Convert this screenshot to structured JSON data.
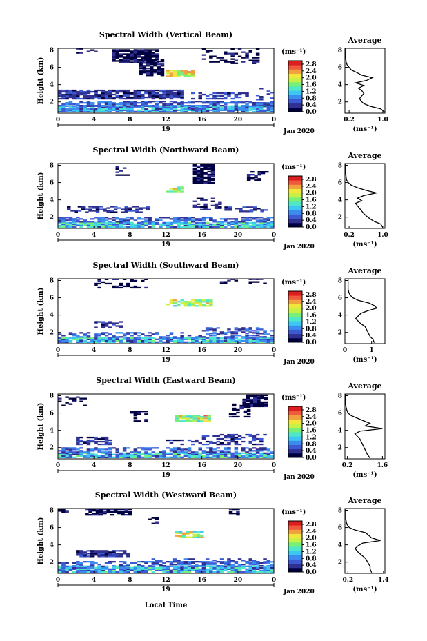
{
  "figure": {
    "xlabel": "Local Time",
    "date_label": "Jan 2020",
    "day_label": "19",
    "ylabel": "Height (km)",
    "avg_title": "Average",
    "avg_xlabel": "(ms⁻¹)",
    "colorbar_unit": "(ms⁻¹)",
    "colorbar_ticks": [
      "0.0",
      "0.4",
      "0.8",
      "1.2",
      "1.6",
      "2.0",
      "2.4",
      "2.8"
    ],
    "colormap": [
      "#000040",
      "#303090",
      "#3c5ad2",
      "#3c8cf0",
      "#3cc8f0",
      "#50e6c8",
      "#78f078",
      "#c8f046",
      "#f0e63c",
      "#f0a03c",
      "#f05a3c",
      "#dc1e1e"
    ]
  },
  "chart_data": [
    {
      "type": "heatmap",
      "title": "Spectral Width (Vertical Beam)",
      "x_ticks": [
        "0",
        "4",
        "8",
        "12",
        "16",
        "20",
        "0"
      ],
      "y_ticks": [
        "2",
        "4",
        "6",
        "8"
      ],
      "xlim": [
        0,
        24
      ],
      "ylim": [
        0.7,
        8.2
      ],
      "avg": {
        "xlim": [
          0.1,
          1.05
        ],
        "x_ticks": [
          "0.2",
          "1.0"
        ],
        "x_tick_values": [
          0.2,
          1.0
        ],
        "y_ticks": [
          "2",
          "4",
          "6",
          "8"
        ],
        "profile": [
          [
            0.8,
            1.05
          ],
          [
            1.2,
            0.95
          ],
          [
            1.5,
            0.7
          ],
          [
            1.8,
            0.55
          ],
          [
            2.1,
            0.48
          ],
          [
            2.4,
            0.45
          ],
          [
            2.7,
            0.5
          ],
          [
            3.0,
            0.55
          ],
          [
            3.3,
            0.5
          ],
          [
            3.6,
            0.42
          ],
          [
            3.9,
            0.55
          ],
          [
            4.2,
            0.35
          ],
          [
            4.5,
            0.62
          ],
          [
            4.8,
            0.75
          ],
          [
            5.1,
            0.5
          ],
          [
            5.4,
            0.38
          ],
          [
            5.7,
            0.25
          ],
          [
            6.0,
            0.2
          ],
          [
            6.3,
            0.15
          ],
          [
            6.6,
            0.13
          ],
          [
            7.0,
            0.12
          ],
          [
            7.5,
            0.12
          ],
          [
            8.2,
            0.12
          ]
        ]
      }
    },
    {
      "type": "heatmap",
      "title": "Spectral Width (Northward Beam)",
      "x_ticks": [
        "0",
        "4",
        "8",
        "12",
        "16",
        "20",
        "0"
      ],
      "y_ticks": [
        "2",
        "4",
        "6",
        "8"
      ],
      "xlim": [
        0,
        24
      ],
      "ylim": [
        0.7,
        8.2
      ],
      "avg": {
        "xlim": [
          0.1,
          1.05
        ],
        "x_ticks": [
          "0.2",
          "1.0"
        ],
        "x_tick_values": [
          0.2,
          1.0
        ],
        "y_ticks": [
          "2",
          "4",
          "6",
          "8"
        ],
        "profile": [
          [
            0.8,
            1.0
          ],
          [
            1.2,
            0.95
          ],
          [
            1.5,
            0.8
          ],
          [
            1.8,
            0.7
          ],
          [
            2.1,
            0.62
          ],
          [
            2.4,
            0.55
          ],
          [
            2.7,
            0.5
          ],
          [
            3.0,
            0.45
          ],
          [
            3.3,
            0.4
          ],
          [
            3.6,
            0.35
          ],
          [
            3.9,
            0.5
          ],
          [
            4.2,
            0.4
          ],
          [
            4.5,
            0.55
          ],
          [
            4.8,
            0.85
          ],
          [
            5.1,
            0.6
          ],
          [
            5.4,
            0.4
          ],
          [
            5.7,
            0.25
          ],
          [
            6.0,
            0.18
          ],
          [
            6.3,
            0.14
          ],
          [
            6.6,
            0.13
          ],
          [
            7.0,
            0.12
          ],
          [
            8.2,
            0.12
          ]
        ]
      }
    },
    {
      "type": "heatmap",
      "title": "Spectral Width (Southward Beam)",
      "x_ticks": [
        "0",
        "4",
        "8",
        "12",
        "16",
        "20",
        "0"
      ],
      "y_ticks": [
        "2",
        "4",
        "6",
        "8"
      ],
      "xlim": [
        0,
        24
      ],
      "ylim": [
        0.7,
        8.2
      ],
      "avg": {
        "xlim": [
          0,
          1.5
        ],
        "x_ticks": [
          "0",
          "1"
        ],
        "x_tick_values": [
          0,
          1
        ],
        "y_ticks": [
          "2",
          "4",
          "6",
          "8"
        ],
        "profile": [
          [
            0.8,
            1.1
          ],
          [
            1.2,
            1.05
          ],
          [
            1.5,
            0.95
          ],
          [
            1.8,
            0.9
          ],
          [
            2.1,
            0.85
          ],
          [
            2.4,
            0.8
          ],
          [
            2.7,
            0.75
          ],
          [
            3.0,
            0.6
          ],
          [
            3.3,
            0.5
          ],
          [
            3.6,
            0.4
          ],
          [
            3.9,
            0.5
          ],
          [
            4.2,
            0.6
          ],
          [
            4.5,
            0.85
          ],
          [
            4.8,
            1.2
          ],
          [
            5.1,
            1.1
          ],
          [
            5.4,
            0.9
          ],
          [
            5.7,
            0.5
          ],
          [
            6.0,
            0.3
          ],
          [
            6.3,
            0.2
          ],
          [
            6.6,
            0.15
          ],
          [
            7.0,
            0.12
          ],
          [
            8.2,
            0.12
          ]
        ]
      }
    },
    {
      "type": "heatmap",
      "title": "Spectral Width (Eastward Beam)",
      "x_ticks": [
        "0",
        "4",
        "8",
        "12",
        "16",
        "20",
        "0"
      ],
      "y_ticks": [
        "2",
        "4",
        "6",
        "8"
      ],
      "xlim": [
        0,
        24
      ],
      "ylim": [
        0.7,
        8.2
      ],
      "avg": {
        "xlim": [
          0.1,
          1.7
        ],
        "x_ticks": [
          "0.2",
          "1.6"
        ],
        "x_tick_values": [
          0.2,
          1.6
        ],
        "y_ticks": [
          "2",
          "4",
          "6",
          "8"
        ],
        "profile": [
          [
            0.8,
            1.1
          ],
          [
            1.2,
            1.0
          ],
          [
            1.5,
            0.95
          ],
          [
            1.8,
            0.9
          ],
          [
            2.1,
            0.85
          ],
          [
            2.4,
            0.8
          ],
          [
            2.7,
            0.75
          ],
          [
            3.0,
            0.7
          ],
          [
            3.3,
            0.6
          ],
          [
            3.6,
            0.5
          ],
          [
            3.9,
            0.7
          ],
          [
            4.2,
            1.6
          ],
          [
            4.5,
            0.9
          ],
          [
            4.8,
            1.1
          ],
          [
            5.1,
            0.85
          ],
          [
            5.4,
            0.6
          ],
          [
            5.7,
            0.35
          ],
          [
            6.0,
            0.22
          ],
          [
            6.3,
            0.18
          ],
          [
            6.6,
            0.15
          ],
          [
            7.0,
            0.13
          ],
          [
            8.2,
            0.13
          ]
        ]
      }
    },
    {
      "type": "heatmap",
      "title": "Spectral Width (Westward Beam)",
      "x_ticks": [
        "0",
        "4",
        "8",
        "12",
        "16",
        "20",
        "0"
      ],
      "y_ticks": [
        "2",
        "4",
        "6",
        "8"
      ],
      "xlim": [
        0,
        24
      ],
      "ylim": [
        0.7,
        8.2
      ],
      "avg": {
        "xlim": [
          0.1,
          1.45
        ],
        "x_ticks": [
          "0.2",
          "1.4"
        ],
        "x_tick_values": [
          0.2,
          1.4
        ],
        "y_ticks": [
          "2",
          "4",
          "6",
          "8"
        ],
        "profile": [
          [
            0.8,
            1.0
          ],
          [
            1.2,
            0.95
          ],
          [
            1.5,
            0.95
          ],
          [
            1.8,
            0.9
          ],
          [
            2.1,
            0.85
          ],
          [
            2.4,
            0.8
          ],
          [
            2.7,
            0.7
          ],
          [
            3.0,
            0.6
          ],
          [
            3.3,
            0.5
          ],
          [
            3.6,
            0.45
          ],
          [
            3.9,
            0.55
          ],
          [
            4.2,
            0.7
          ],
          [
            4.5,
            1.3
          ],
          [
            4.8,
            1.0
          ],
          [
            5.1,
            0.9
          ],
          [
            5.4,
            0.8
          ],
          [
            5.7,
            0.45
          ],
          [
            6.0,
            0.25
          ],
          [
            6.3,
            0.18
          ],
          [
            6.6,
            0.15
          ],
          [
            7.0,
            0.13
          ],
          [
            8.2,
            0.13
          ]
        ]
      }
    }
  ]
}
